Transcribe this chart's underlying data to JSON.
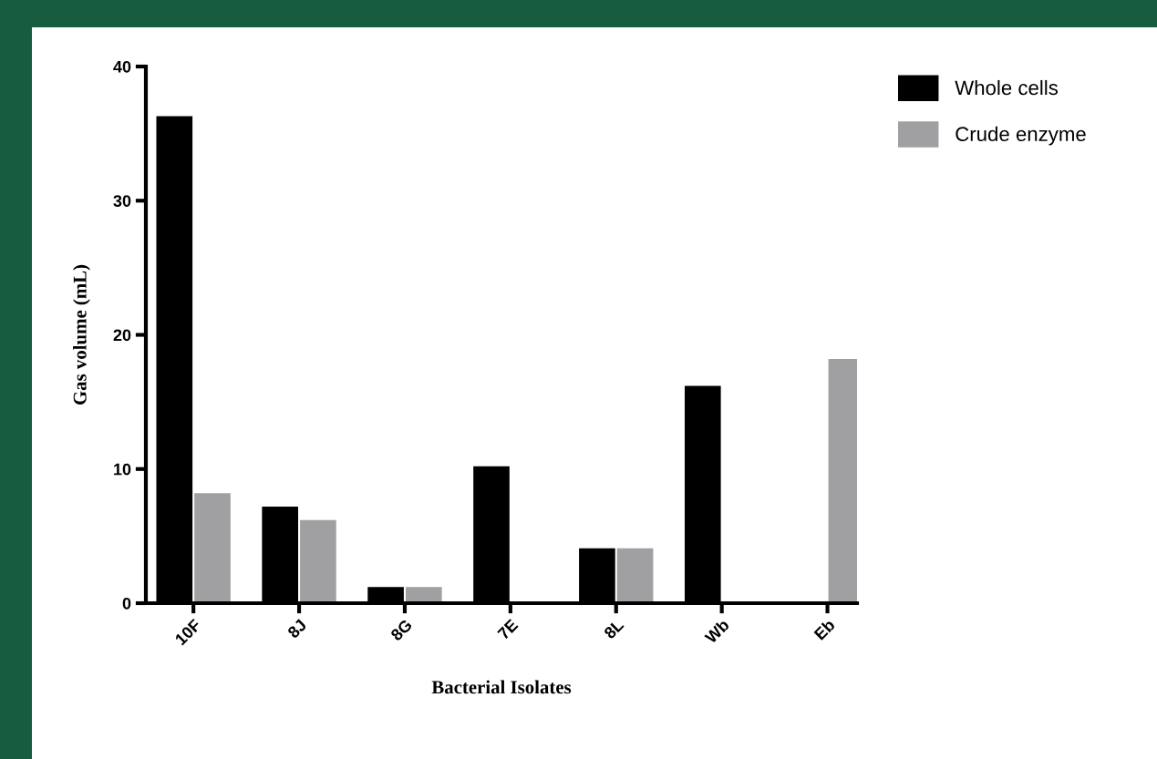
{
  "chart_data": {
    "type": "bar",
    "xlabel": "Bacterial Isolates",
    "ylabel": "Gas volume (mL)",
    "categories": [
      "10F",
      "8J",
      "8G",
      "7E",
      "8L",
      "Wb",
      "Eb"
    ],
    "series": [
      {
        "name": "Whole cells",
        "color": "#000000",
        "values": [
          36.3,
          7.2,
          1.2,
          10.2,
          4.1,
          16.2,
          0
        ]
      },
      {
        "name": "Crude enzyme",
        "color": "#a0a0a2",
        "values": [
          8.2,
          6.2,
          1.2,
          0,
          4.1,
          0,
          18.2
        ]
      }
    ],
    "ylim": [
      0,
      40
    ],
    "yticks": [
      0,
      10,
      20,
      30,
      40
    ],
    "grid": false,
    "legend": "top right"
  }
}
